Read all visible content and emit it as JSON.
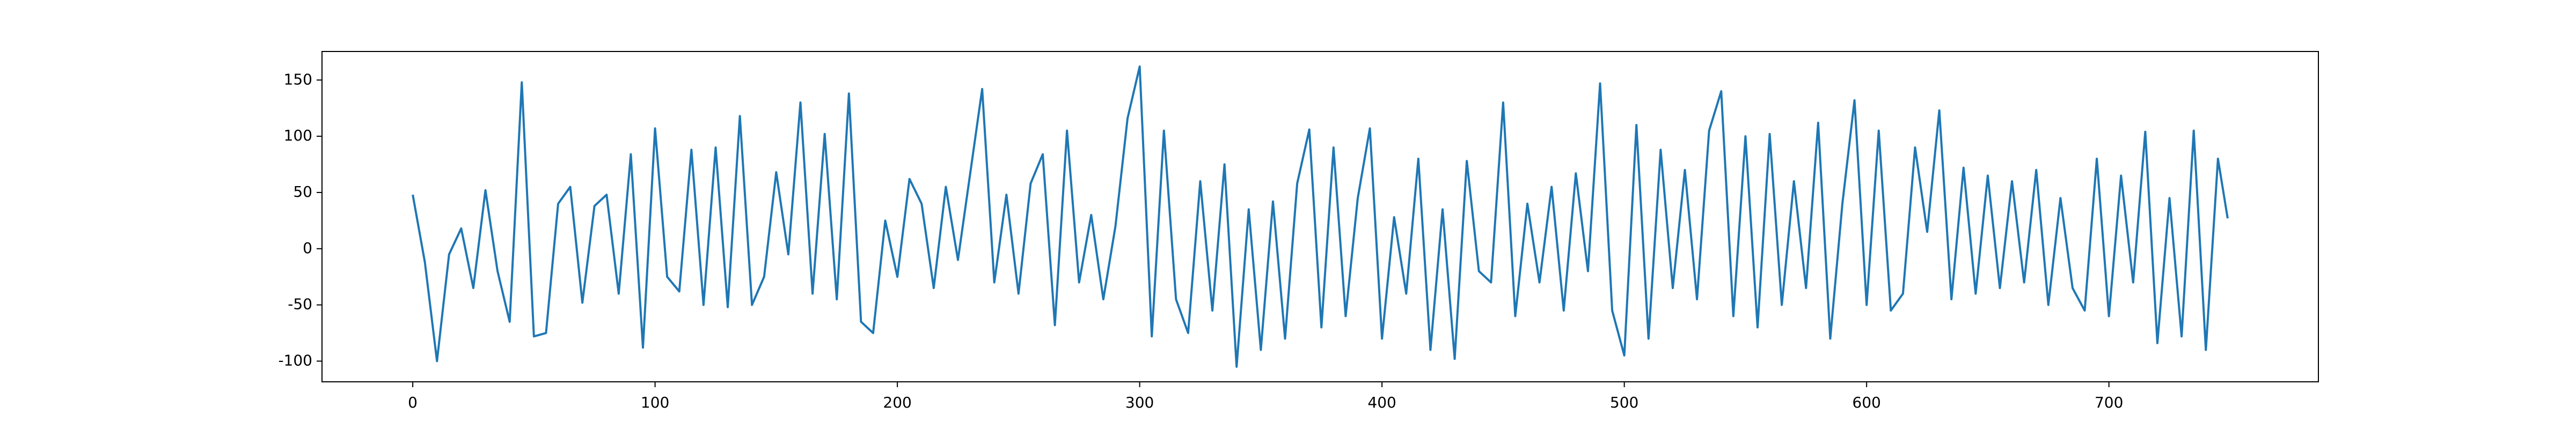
{
  "chart_data": {
    "type": "line",
    "x": [
      0,
      5,
      10,
      15,
      20,
      25,
      30,
      35,
      40,
      45,
      50,
      55,
      60,
      65,
      70,
      75,
      80,
      85,
      90,
      95,
      100,
      105,
      110,
      115,
      120,
      125,
      130,
      135,
      140,
      145,
      150,
      155,
      160,
      165,
      170,
      175,
      180,
      185,
      190,
      195,
      200,
      205,
      210,
      215,
      220,
      225,
      230,
      235,
      240,
      245,
      250,
      255,
      260,
      265,
      270,
      275,
      280,
      285,
      290,
      295,
      300,
      305,
      310,
      315,
      320,
      325,
      330,
      335,
      340,
      345,
      350,
      355,
      360,
      365,
      370,
      375,
      380,
      385,
      390,
      395,
      400,
      405,
      410,
      415,
      420,
      425,
      430,
      435,
      440,
      445,
      450,
      455,
      460,
      465,
      470,
      475,
      480,
      485,
      490,
      495,
      500,
      505,
      510,
      515,
      520,
      525,
      530,
      535,
      540,
      545,
      550,
      555,
      560,
      565,
      570,
      575,
      580,
      585,
      590,
      595,
      600,
      605,
      610,
      615,
      620,
      625,
      630,
      635,
      640,
      645,
      650,
      655,
      660,
      665,
      670,
      675,
      680,
      685,
      690,
      695,
      700,
      705,
      710,
      715,
      720,
      725,
      730,
      735,
      740,
      745,
      749
    ],
    "series": [
      {
        "color": "#1f77b4",
        "values": [
          48,
          -12,
          -100,
          -5,
          18,
          -35,
          52,
          -20,
          -65,
          148,
          -78,
          -75,
          40,
          55,
          -48,
          38,
          48,
          -40,
          84,
          -88,
          107,
          -25,
          -38,
          88,
          -50,
          90,
          -52,
          118,
          -50,
          -25,
          68,
          -5,
          130,
          -40,
          102,
          -45,
          138,
          -65,
          -75,
          25,
          -25,
          62,
          40,
          -35,
          55,
          -10,
          66,
          142,
          -30,
          48,
          -40,
          58,
          84,
          -68,
          105,
          -30,
          30,
          -45,
          20,
          116,
          162,
          -78,
          105,
          -45,
          -75,
          60,
          -55,
          75,
          -105,
          35,
          -90,
          42,
          -80,
          58,
          106,
          -70,
          90,
          -60,
          45,
          107,
          -80,
          28,
          -40,
          80,
          -90,
          35,
          -98,
          78,
          -20,
          -30,
          130,
          -60,
          40,
          -30,
          55,
          -55,
          67,
          -20,
          147,
          -55,
          -95,
          110,
          -80,
          88,
          -35,
          70,
          -45,
          105,
          140,
          -60,
          100,
          -70,
          102,
          -50,
          60,
          -35,
          112,
          -80,
          40,
          132,
          -50,
          105,
          -55,
          -40,
          90,
          15,
          123,
          -45,
          72,
          -40,
          65,
          -35,
          60,
          -30,
          70,
          -50,
          45,
          -35,
          -55,
          80,
          -60,
          65,
          -30,
          104,
          -84,
          45,
          -78,
          105,
          -90,
          80,
          27
        ]
      }
    ],
    "xlim": [
      -37.45,
      786.45
    ],
    "xticks": [
      0,
      100,
      200,
      300,
      400,
      500,
      600,
      700
    ],
    "ylim": [
      -118.4,
      175.4
    ],
    "yticks": [
      -100,
      -50,
      0,
      50,
      100,
      150
    ]
  }
}
